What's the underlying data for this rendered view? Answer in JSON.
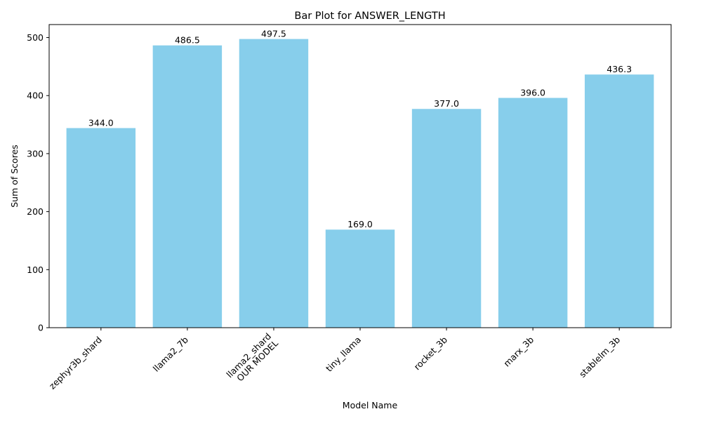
{
  "chart_data": {
    "type": "bar",
    "title": "Bar Plot for ANSWER_LENGTH",
    "xlabel": "Model Name",
    "ylabel": "Sum of Scores",
    "categories": [
      [
        "zephyr3b_shard"
      ],
      [
        "llama2_7b"
      ],
      [
        "llama2_shard",
        "OUR MODEL"
      ],
      [
        "tiny_llama"
      ],
      [
        "rocket_3b"
      ],
      [
        "marx_3b"
      ],
      [
        "stablelm_3b"
      ]
    ],
    "values": [
      344.0,
      486.5,
      497.5,
      169.0,
      377.0,
      396.0,
      436.3
    ],
    "value_labels": [
      "344.0",
      "486.5",
      "497.5",
      "169.0",
      "377.0",
      "396.0",
      "436.3"
    ],
    "ylim": [
      0,
      522.4
    ],
    "yticks": [
      0,
      100,
      200,
      300,
      400,
      500
    ],
    "bar_color": "#87ceeb",
    "grid": false,
    "x_tick_rotation": 45
  }
}
